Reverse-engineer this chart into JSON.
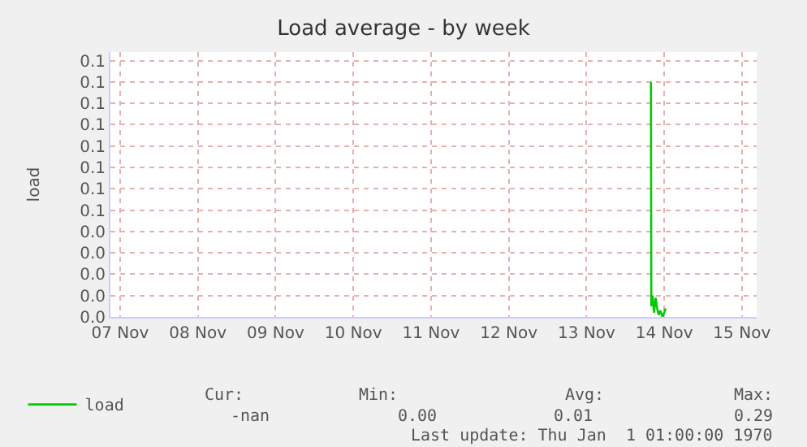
{
  "chart_data": {
    "type": "line",
    "title": "Load average - by week",
    "ylabel": "load",
    "x": [
      "--11-14T07:55",
      "--11-14T08:02",
      "--11-14T08:24",
      "--11-14T08:53",
      "--11-14T09:22",
      "--11-14T09:50",
      "--11-14T10:19",
      "--11-14T10:48",
      "--11-14T11:31",
      "--11-14T12:00",
      "--11-14T12:29"
    ],
    "series": [
      {
        "name": "load",
        "color": "#00cc00",
        "values": [
          0.11,
          0.005,
          0.01,
          0.002,
          0.009,
          0.004,
          0.001,
          0.003,
          0.0,
          0.002,
          0.004
        ]
      }
    ],
    "xlim": [
      "--11-07T09:00",
      "--11-15T16:34"
    ],
    "xticks": [
      {
        "value": "--11-07T12:00",
        "label": "07 Nov"
      },
      {
        "value": "--11-08T12:00",
        "label": "08 Nov"
      },
      {
        "value": "--11-09T12:00",
        "label": "09 Nov"
      },
      {
        "value": "--11-10T12:00",
        "label": "10 Nov"
      },
      {
        "value": "--11-11T12:00",
        "label": "11 Nov"
      },
      {
        "value": "--11-12T12:00",
        "label": "12 Nov"
      },
      {
        "value": "--11-13T12:00",
        "label": "13 Nov"
      },
      {
        "value": "--11-14T12:00",
        "label": "14 Nov"
      },
      {
        "value": "--11-15T12:00",
        "label": "15 Nov"
      }
    ],
    "ylim": [
      0,
      0.124
    ],
    "yticks": [
      {
        "value": 0,
        "label": "0.0"
      },
      {
        "value": 0.01,
        "label": "0.0"
      },
      {
        "value": 0.02,
        "label": "0.0"
      },
      {
        "value": 0.03,
        "label": "0.0"
      },
      {
        "value": 0.04,
        "label": "0.0"
      },
      {
        "value": 0.05,
        "label": "0.1"
      },
      {
        "value": 0.06,
        "label": "0.1"
      },
      {
        "value": 0.07,
        "label": "0.1"
      },
      {
        "value": 0.08,
        "label": "0.1"
      },
      {
        "value": 0.09,
        "label": "0.1"
      },
      {
        "value": 0.1,
        "label": "0.1"
      },
      {
        "value": 0.11,
        "label": "0.1"
      },
      {
        "value": 0.12,
        "label": "0.1"
      }
    ],
    "grid": true,
    "legend": "bottom left",
    "marker": "none",
    "line_style": "solid",
    "annotations": [
      "Cur:",
      "Min:",
      "Avg:",
      "Max:",
      "-nan",
      "0.00",
      "0.01",
      "0.29",
      "Last update: Thu Jan  1 01:00:00 1970"
    ]
  }
}
